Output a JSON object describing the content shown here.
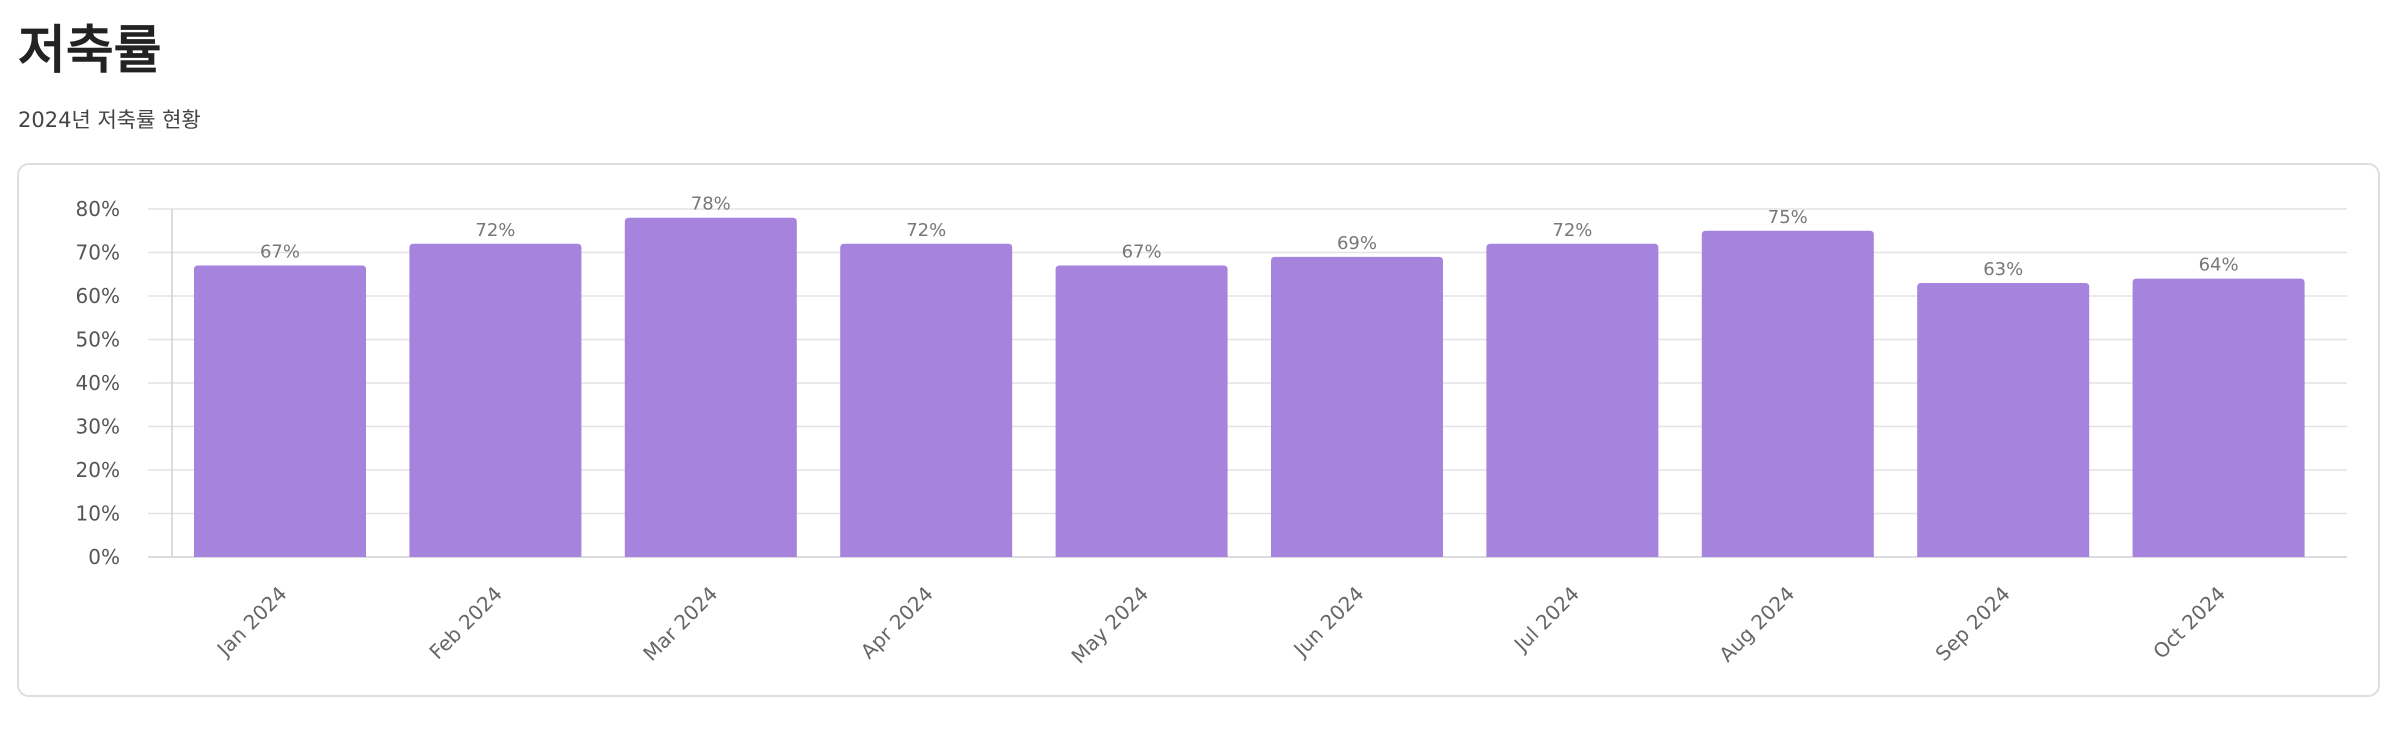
{
  "page": {
    "title": "저축률",
    "subtitle": "2024년 저축률 현황"
  },
  "colors": {
    "bar": "#a683dc",
    "grid": "#e2e2e8",
    "axis": "#cfcfd6"
  },
  "chart_data": {
    "type": "bar",
    "title": "",
    "xlabel": "",
    "ylabel": "",
    "categories": [
      "Jan 2024",
      "Feb 2024",
      "Mar 2024",
      "Apr 2024",
      "May 2024",
      "Jun 2024",
      "Jul 2024",
      "Aug 2024",
      "Sep 2024",
      "Oct 2024"
    ],
    "values": [
      67,
      72,
      78,
      72,
      67,
      69,
      72,
      75,
      63,
      64
    ],
    "value_labels": [
      "67%",
      "72%",
      "78%",
      "72%",
      "67%",
      "69%",
      "72%",
      "75%",
      "63%",
      "64%"
    ],
    "ylim": [
      0,
      80
    ],
    "yticks": [
      0,
      10,
      20,
      30,
      40,
      50,
      60,
      70,
      80
    ],
    "ytick_labels": [
      "0%",
      "10%",
      "20%",
      "30%",
      "40%",
      "50%",
      "60%",
      "70%",
      "80%"
    ],
    "grid": true,
    "legend": "none"
  }
}
